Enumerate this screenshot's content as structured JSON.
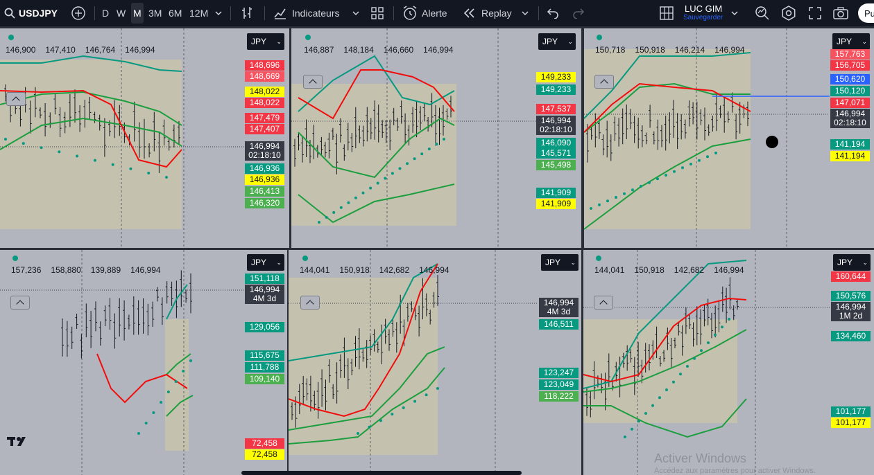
{
  "toolbar": {
    "symbol": "USDJPY",
    "intervals": [
      "D",
      "W",
      "M",
      "3M",
      "6M",
      "12M"
    ],
    "active_interval": "M",
    "indicators_label": "Indicateurs",
    "alert_label": "Alerte",
    "replay_label": "Replay",
    "layout_name": "LUC GIM",
    "layout_status": "Sauvegarder",
    "publish_label": "Pu"
  },
  "panes": [
    {
      "currency": "JPY",
      "ohlc": [
        "146,900",
        "147,410",
        "146,764",
        "146,994"
      ],
      "labels": [
        {
          "text": "148,696",
          "bg": "#f23645",
          "fg": "#ffffff"
        },
        {
          "text": "148,669",
          "bg": "#f7525f",
          "fg": "#ffffff"
        },
        {
          "text": "148,022",
          "bg": "#ffff00",
          "fg": "#131722"
        },
        {
          "text": "148,022",
          "bg": "#f23645",
          "fg": "#ffffff"
        },
        {
          "text": "147,479",
          "bg": "#f23645",
          "fg": "#ffffff"
        },
        {
          "text": "147,407",
          "bg": "#f23645",
          "fg": "#ffffff"
        },
        {
          "text": "146,994",
          "sub": "02:18:10",
          "bg": "#363a45",
          "fg": "#ffffff"
        },
        {
          "text": "146,936",
          "bg": "#089981",
          "fg": "#ffffff"
        },
        {
          "text": "146,936",
          "bg": "#ffff00",
          "fg": "#131722"
        },
        {
          "text": "146,413",
          "bg": "#4caf50",
          "fg": "#ffffff"
        },
        {
          "text": "146,320",
          "bg": "#4caf50",
          "fg": "#ffffff"
        }
      ]
    },
    {
      "currency": "JPY",
      "ohlc": [
        "146,887",
        "148,184",
        "146,660",
        "146,994"
      ],
      "labels": [
        {
          "text": "149,233",
          "bg": "#ffff00",
          "fg": "#131722"
        },
        {
          "text": "149,233",
          "bg": "#089981",
          "fg": "#ffffff"
        },
        {
          "text": "147,537",
          "bg": "#f23645",
          "fg": "#ffffff"
        },
        {
          "text": "146,994",
          "sub": "02:18:10",
          "bg": "#363a45",
          "fg": "#ffffff"
        },
        {
          "text": "146,090",
          "bg": "#089981",
          "fg": "#ffffff"
        },
        {
          "text": "145,571",
          "bg": "#089981",
          "fg": "#ffffff"
        },
        {
          "text": "145,498",
          "bg": "#4caf50",
          "fg": "#ffffff"
        },
        {
          "text": "141,909",
          "bg": "#089981",
          "fg": "#ffffff"
        },
        {
          "text": "141,909",
          "bg": "#ffff00",
          "fg": "#131722"
        }
      ]
    },
    {
      "currency": "JPY",
      "ohlc": [
        "150,718",
        "150,918",
        "146,214",
        "146,994"
      ],
      "labels": [
        {
          "text": "157,763",
          "bg": "#f7525f",
          "fg": "#ffffff"
        },
        {
          "text": "156,705",
          "bg": "#f23645",
          "fg": "#ffffff"
        },
        {
          "text": "150,620",
          "bg": "#2962ff",
          "fg": "#ffffff"
        },
        {
          "text": "150,120",
          "bg": "#089981",
          "fg": "#ffffff"
        },
        {
          "text": "147,071",
          "bg": "#f23645",
          "fg": "#ffffff"
        },
        {
          "text": "146,994",
          "sub": "02:18:10",
          "bg": "#363a45",
          "fg": "#ffffff"
        },
        {
          "text": "141,194",
          "bg": "#089981",
          "fg": "#ffffff"
        },
        {
          "text": "141,194",
          "bg": "#ffff00",
          "fg": "#131722"
        }
      ]
    },
    {
      "currency": "JPY",
      "ohlc": [
        "157,236",
        "158,880",
        "139,889",
        "146,994"
      ],
      "labels": [
        {
          "text": "151,118",
          "bg": "#089981",
          "fg": "#ffffff"
        },
        {
          "text": "146,994",
          "sub": "4M 3d",
          "bg": "#363a45",
          "fg": "#ffffff"
        },
        {
          "text": "129,056",
          "bg": "#089981",
          "fg": "#ffffff"
        },
        {
          "text": "115,675",
          "bg": "#089981",
          "fg": "#ffffff"
        },
        {
          "text": "111,788",
          "bg": "#089981",
          "fg": "#ffffff"
        },
        {
          "text": "109,140",
          "bg": "#4caf50",
          "fg": "#ffffff"
        },
        {
          "text": "72,458",
          "bg": "#f23645",
          "fg": "#ffffff"
        },
        {
          "text": "72,458",
          "bg": "#ffff00",
          "fg": "#131722"
        }
      ]
    },
    {
      "currency": "JPY",
      "ohlc": [
        "144,041",
        "150,918",
        "142,682",
        "146,994"
      ],
      "labels": [
        {
          "text": "146,994",
          "sub": "4M 3d",
          "bg": "#363a45",
          "fg": "#ffffff"
        },
        {
          "text": "146,511",
          "bg": "#089981",
          "fg": "#ffffff"
        },
        {
          "text": "123,247",
          "bg": "#089981",
          "fg": "#ffffff"
        },
        {
          "text": "123,049",
          "bg": "#089981",
          "fg": "#ffffff"
        },
        {
          "text": "118,222",
          "bg": "#4caf50",
          "fg": "#ffffff"
        }
      ]
    },
    {
      "currency": "JPY",
      "ohlc": [
        "144,041",
        "150,918",
        "142,682",
        "146,994"
      ],
      "labels": [
        {
          "text": "160,644",
          "bg": "#f23645",
          "fg": "#ffffff"
        },
        {
          "text": "150,576",
          "bg": "#089981",
          "fg": "#ffffff"
        },
        {
          "text": "146,994",
          "sub": "1M 2d",
          "bg": "#363a45",
          "fg": "#ffffff"
        },
        {
          "text": "134,460",
          "bg": "#089981",
          "fg": "#ffffff"
        },
        {
          "text": "101,177",
          "bg": "#089981",
          "fg": "#ffffff"
        },
        {
          "text": "101,177",
          "bg": "#ffff00",
          "fg": "#131722"
        }
      ]
    }
  ],
  "watermark": {
    "title": "Activer Windows",
    "subtitle": "Accédez aux paramètres pour activer Windows."
  }
}
